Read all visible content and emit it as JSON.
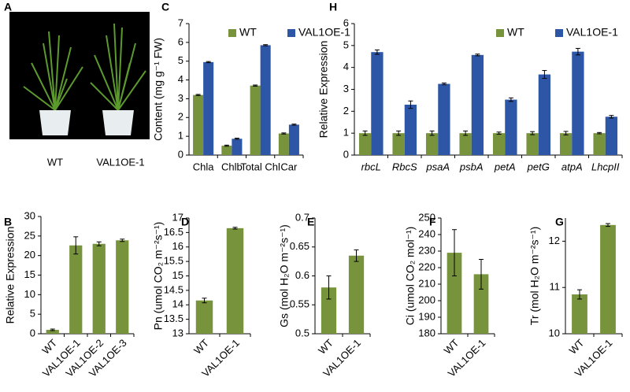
{
  "photo": {
    "panel": "A",
    "labels": [
      "WT",
      "VAL1OE-1"
    ]
  },
  "chart_data": [
    {
      "type": "bar",
      "panel": "B",
      "ylabel": "Relative Expression",
      "categories": [
        "WT",
        "VAL1OE-1",
        "VAL1OE-2",
        "VAL1OE-3"
      ],
      "series": [
        {
          "color": "#77933c",
          "values": [
            1,
            22.6,
            23,
            23.9
          ],
          "errors": [
            0.2,
            2.2,
            0.5,
            0.3
          ]
        }
      ],
      "ylim": [
        0,
        30
      ],
      "yticks": [
        0,
        5,
        10,
        15,
        20,
        25,
        30
      ]
    },
    {
      "type": "bar",
      "panel": "C",
      "ylabel": "Content (mg g⁻¹ FW)",
      "categories": [
        "Chla",
        "Chlb",
        "Total Chl",
        "Car"
      ],
      "series": [
        {
          "name": "WT",
          "color": "#77933c",
          "values": [
            3.2,
            0.5,
            3.7,
            1.15
          ],
          "errors": [
            0.03,
            0.03,
            0.03,
            0.03
          ]
        },
        {
          "name": "VAL1OE-1",
          "color": "#2e56a6",
          "values": [
            4.95,
            0.87,
            5.85,
            1.62
          ],
          "errors": [
            0.03,
            0.03,
            0.03,
            0.03
          ]
        }
      ],
      "ylim": [
        0,
        7
      ],
      "yticks": [
        0,
        1,
        2,
        3,
        4,
        5,
        6,
        7
      ],
      "legend": "top"
    },
    {
      "type": "bar",
      "panel": "D",
      "ylabel": "Pn (umol CO₂ m⁻²s⁻¹)",
      "categories": [
        "WT",
        "VAL1OE-1"
      ],
      "series": [
        {
          "color": "#77933c",
          "values": [
            14.15,
            16.65
          ],
          "errors": [
            0.08,
            0.03
          ]
        }
      ],
      "ylim": [
        13,
        17
      ],
      "yticks": [
        13,
        13.5,
        14,
        14.5,
        15,
        15.5,
        16,
        16.5,
        17
      ]
    },
    {
      "type": "bar",
      "panel": "E",
      "ylabel": "Gs (mol H₂O m⁻²s⁻¹)",
      "categories": [
        "WT",
        "VAL1OE-1"
      ],
      "series": [
        {
          "color": "#77933c",
          "values": [
            0.58,
            0.635
          ],
          "errors": [
            0.02,
            0.01
          ]
        }
      ],
      "ylim": [
        0.5,
        0.7
      ],
      "yticks": [
        0.5,
        0.55,
        0.6,
        0.65,
        0.7
      ]
    },
    {
      "type": "bar",
      "panel": "F",
      "ylabel": "Ci (umol CO₂ mol⁻¹)",
      "categories": [
        "WT",
        "VAL1OE-1"
      ],
      "series": [
        {
          "color": "#77933c",
          "values": [
            229,
            216
          ],
          "errors": [
            14,
            9
          ]
        }
      ],
      "ylim": [
        180,
        250
      ],
      "yticks": [
        180,
        190,
        200,
        210,
        220,
        230,
        240,
        250
      ]
    },
    {
      "type": "bar",
      "panel": "G",
      "ylabel": "Tr (mol H₂O m⁻²s⁻¹)",
      "categories": [
        "WT",
        "VAL1OE-1"
      ],
      "series": [
        {
          "color": "#77933c",
          "values": [
            10.85,
            12.35
          ],
          "errors": [
            0.1,
            0.03
          ]
        }
      ],
      "ylim": [
        10,
        12.5
      ],
      "yticks": [
        10,
        11,
        12
      ]
    },
    {
      "type": "bar",
      "panel": "H",
      "ylabel": "Relative Expression",
      "categories": [
        "rbcL",
        "RbcS",
        "psaA",
        "psbA",
        "petA",
        "petG",
        "atpA",
        "LhcpII"
      ],
      "series": [
        {
          "name": "WT",
          "color": "#77933c",
          "values": [
            1,
            1,
            1,
            1,
            1,
            1,
            1,
            1
          ],
          "errors": [
            0.1,
            0.1,
            0.1,
            0.1,
            0.05,
            0.07,
            0.08,
            0.03
          ]
        },
        {
          "name": "VAL1OE-1",
          "color": "#2e56a6",
          "values": [
            4.7,
            2.3,
            3.25,
            4.57,
            2.53,
            3.68,
            4.72,
            1.75
          ],
          "errors": [
            0.1,
            0.17,
            0.04,
            0.04,
            0.08,
            0.18,
            0.15,
            0.06
          ]
        }
      ],
      "ylim": [
        0,
        6
      ],
      "yticks": [
        0,
        1,
        2,
        3,
        4,
        5,
        6
      ],
      "legend": "top"
    }
  ]
}
